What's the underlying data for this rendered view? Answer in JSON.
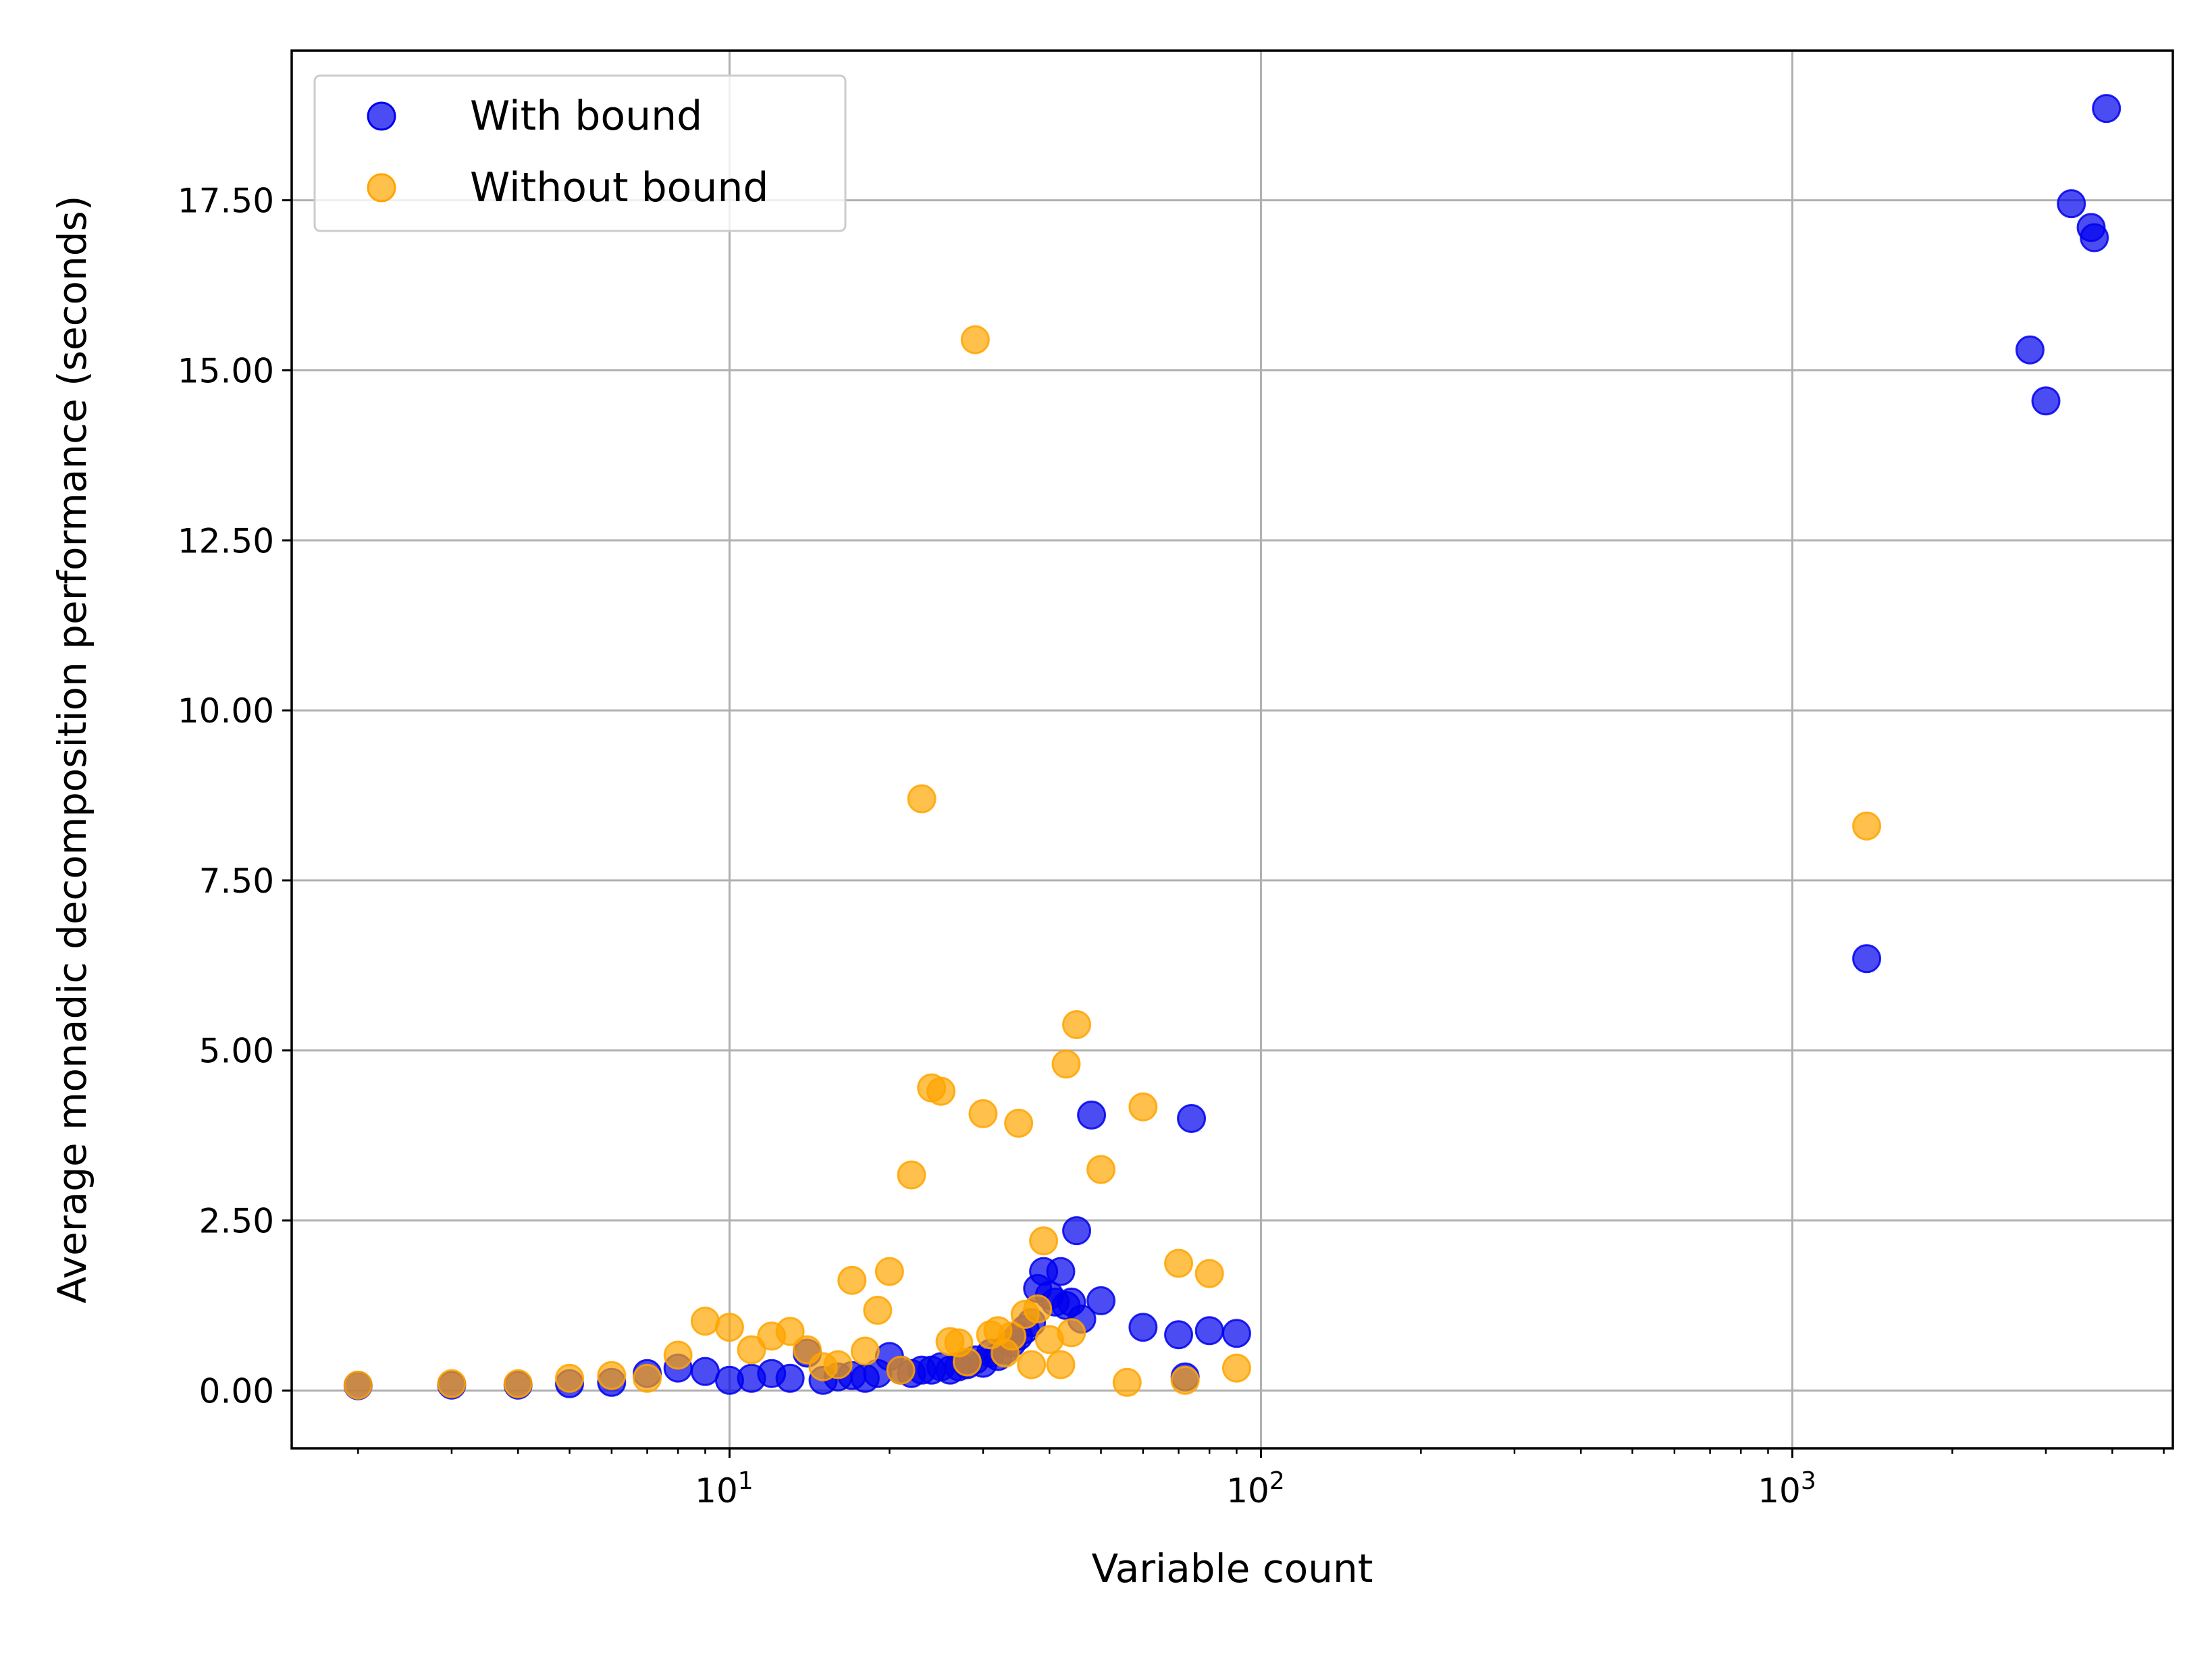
{
  "chart_data": {
    "type": "scatter",
    "xlabel": "Variable count",
    "ylabel": "Average monadic decomposition performance (seconds)",
    "xscale": "log",
    "xlim": [
      1.5,
      5200
    ],
    "ylim": [
      -0.85,
      19.7
    ],
    "grid": true,
    "legend_position": "top-left",
    "ytick_labels": [
      "0.00",
      "2.50",
      "5.00",
      "7.50",
      "10.00",
      "12.50",
      "15.00",
      "17.50"
    ],
    "ytick_values": [
      0,
      2.5,
      5,
      7.5,
      10,
      12.5,
      15,
      17.5
    ],
    "xtick_labels": [
      {
        "base": "10",
        "exp": "1",
        "value": 10
      },
      {
        "base": "10",
        "exp": "2",
        "value": 100
      },
      {
        "base": "10",
        "exp": "3",
        "value": 1000
      }
    ],
    "series": [
      {
        "name": "With bound",
        "color": "#0000ee",
        "points": [
          [
            2,
            0.07
          ],
          [
            3,
            0.08
          ],
          [
            4,
            0.08
          ],
          [
            5,
            0.1
          ],
          [
            6,
            0.12
          ],
          [
            7,
            0.25
          ],
          [
            8,
            0.33
          ],
          [
            9,
            0.28
          ],
          [
            10,
            0.15
          ],
          [
            11,
            0.18
          ],
          [
            12,
            0.25
          ],
          [
            13,
            0.18
          ],
          [
            14,
            0.55
          ],
          [
            15,
            0.15
          ],
          [
            16,
            0.2
          ],
          [
            17,
            0.22
          ],
          [
            18,
            0.18
          ],
          [
            19,
            0.25
          ],
          [
            20,
            0.5
          ],
          [
            21,
            0.3
          ],
          [
            22,
            0.25
          ],
          [
            23,
            0.3
          ],
          [
            24,
            0.3
          ],
          [
            25,
            0.35
          ],
          [
            26,
            0.3
          ],
          [
            27,
            0.35
          ],
          [
            28,
            0.38
          ],
          [
            29,
            0.45
          ],
          [
            30,
            0.4
          ],
          [
            31,
            0.55
          ],
          [
            32,
            0.5
          ],
          [
            33,
            0.6
          ],
          [
            34,
            0.7
          ],
          [
            35,
            0.8
          ],
          [
            36,
            0.9
          ],
          [
            37,
            1.0
          ],
          [
            38,
            1.5
          ],
          [
            39,
            1.75
          ],
          [
            40,
            1.4
          ],
          [
            41,
            1.3
          ],
          [
            42,
            1.75
          ],
          [
            43,
            1.25
          ],
          [
            44,
            1.3
          ],
          [
            45,
            2.35
          ],
          [
            46,
            1.05
          ],
          [
            48,
            4.05
          ],
          [
            50,
            1.32
          ],
          [
            60,
            0.93
          ],
          [
            70,
            0.82
          ],
          [
            72,
            0.2
          ],
          [
            74,
            4.0
          ],
          [
            80,
            0.88
          ],
          [
            90,
            0.84
          ],
          [
            1380,
            6.35
          ],
          [
            2800,
            15.3
          ],
          [
            3000,
            14.55
          ],
          [
            3350,
            17.45
          ],
          [
            3650,
            17.1
          ],
          [
            3700,
            16.95
          ],
          [
            3900,
            18.85
          ]
        ]
      },
      {
        "name": "Without bound",
        "color": "#ffa500",
        "points": [
          [
            2,
            0.08
          ],
          [
            3,
            0.1
          ],
          [
            4,
            0.1
          ],
          [
            5,
            0.18
          ],
          [
            6,
            0.22
          ],
          [
            7,
            0.18
          ],
          [
            8,
            0.52
          ],
          [
            9,
            1.02
          ],
          [
            10,
            0.93
          ],
          [
            11,
            0.6
          ],
          [
            12,
            0.8
          ],
          [
            13,
            0.87
          ],
          [
            14,
            0.6
          ],
          [
            15,
            0.35
          ],
          [
            16,
            0.38
          ],
          [
            17,
            1.62
          ],
          [
            18,
            0.58
          ],
          [
            19,
            1.18
          ],
          [
            20,
            1.75
          ],
          [
            21,
            0.3
          ],
          [
            22,
            3.17
          ],
          [
            23,
            8.7
          ],
          [
            24,
            4.45
          ],
          [
            25,
            4.4
          ],
          [
            26,
            0.72
          ],
          [
            27,
            0.7
          ],
          [
            28,
            0.42
          ],
          [
            29,
            15.45
          ],
          [
            30,
            4.07
          ],
          [
            31,
            0.82
          ],
          [
            32,
            0.88
          ],
          [
            33,
            0.55
          ],
          [
            34,
            0.8
          ],
          [
            35,
            3.93
          ],
          [
            36,
            1.12
          ],
          [
            37,
            0.38
          ],
          [
            38,
            1.2
          ],
          [
            39,
            2.2
          ],
          [
            40,
            0.75
          ],
          [
            42,
            0.38
          ],
          [
            43,
            4.8
          ],
          [
            44,
            0.85
          ],
          [
            45,
            5.38
          ],
          [
            50,
            3.25
          ],
          [
            56,
            0.12
          ],
          [
            60,
            4.17
          ],
          [
            70,
            1.87
          ],
          [
            72,
            0.15
          ],
          [
            80,
            1.72
          ],
          [
            90,
            0.33
          ],
          [
            1380,
            8.3
          ]
        ]
      }
    ]
  }
}
